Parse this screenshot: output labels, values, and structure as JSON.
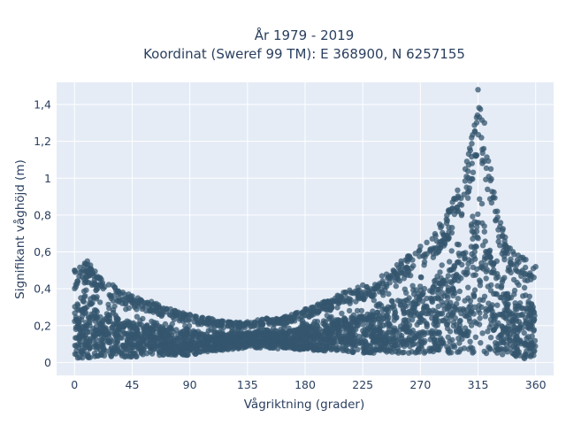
{
  "chart_data": {
    "type": "scatter",
    "title_line1": "År 1979 - 2019",
    "title_line2": "Koordinat (Sweref 99 TM): E 368900, N 6257155",
    "xlabel": "Vågriktning (grader)",
    "ylabel": "Signifikant våghöjd (m)",
    "xlim": [
      -14,
      374
    ],
    "ylim": [
      -0.07,
      1.52
    ],
    "x_ticks": [
      {
        "value": 0,
        "label": "0"
      },
      {
        "value": 45,
        "label": "45"
      },
      {
        "value": 90,
        "label": "90"
      },
      {
        "value": 135,
        "label": "135"
      },
      {
        "value": 180,
        "label": "180"
      },
      {
        "value": 225,
        "label": "225"
      },
      {
        "value": 270,
        "label": "270"
      },
      {
        "value": 315,
        "label": "315"
      },
      {
        "value": 360,
        "label": "360"
      }
    ],
    "y_ticks": [
      {
        "value": 0,
        "label": "0"
      },
      {
        "value": 0.2,
        "label": "0,2"
      },
      {
        "value": 0.4,
        "label": "0,4"
      },
      {
        "value": 0.6,
        "label": "0,6"
      },
      {
        "value": 0.8,
        "label": "0,8"
      },
      {
        "value": 1.0,
        "label": "1"
      },
      {
        "value": 1.2,
        "label": "1,2"
      },
      {
        "value": 1.4,
        "label": "1,4"
      }
    ],
    "grid": true,
    "colors": {
      "plot_bg": "#e5ecf6",
      "grid": "#ffffff",
      "marker": "#34566e"
    },
    "series": [
      {
        "envelope": [
          {
            "x": 0,
            "min": 0.02,
            "max": 0.5
          },
          {
            "x": 10,
            "min": 0.02,
            "max": 0.55
          },
          {
            "x": 20,
            "min": 0.03,
            "max": 0.46
          },
          {
            "x": 30,
            "min": 0.03,
            "max": 0.42
          },
          {
            "x": 45,
            "min": 0.03,
            "max": 0.36
          },
          {
            "x": 60,
            "min": 0.04,
            "max": 0.33
          },
          {
            "x": 75,
            "min": 0.04,
            "max": 0.29
          },
          {
            "x": 90,
            "min": 0.04,
            "max": 0.26
          },
          {
            "x": 105,
            "min": 0.06,
            "max": 0.24
          },
          {
            "x": 120,
            "min": 0.07,
            "max": 0.22
          },
          {
            "x": 135,
            "min": 0.08,
            "max": 0.22
          },
          {
            "x": 150,
            "min": 0.08,
            "max": 0.24
          },
          {
            "x": 165,
            "min": 0.07,
            "max": 0.25
          },
          {
            "x": 180,
            "min": 0.07,
            "max": 0.29
          },
          {
            "x": 195,
            "min": 0.06,
            "max": 0.33
          },
          {
            "x": 210,
            "min": 0.06,
            "max": 0.38
          },
          {
            "x": 225,
            "min": 0.05,
            "max": 0.42
          },
          {
            "x": 240,
            "min": 0.05,
            "max": 0.47
          },
          {
            "x": 255,
            "min": 0.05,
            "max": 0.55
          },
          {
            "x": 270,
            "min": 0.05,
            "max": 0.63
          },
          {
            "x": 285,
            "min": 0.05,
            "max": 0.75
          },
          {
            "x": 295,
            "min": 0.05,
            "max": 0.87
          },
          {
            "x": 305,
            "min": 0.05,
            "max": 1.05
          },
          {
            "x": 310,
            "min": 0.05,
            "max": 1.22
          },
          {
            "x": 315,
            "min": 0.05,
            "max": 1.48
          },
          {
            "x": 320,
            "min": 0.05,
            "max": 1.3
          },
          {
            "x": 325,
            "min": 0.05,
            "max": 1.05
          },
          {
            "x": 330,
            "min": 0.04,
            "max": 0.82
          },
          {
            "x": 340,
            "min": 0.03,
            "max": 0.62
          },
          {
            "x": 350,
            "min": 0.02,
            "max": 0.57
          },
          {
            "x": 360,
            "min": 0.02,
            "max": 0.52
          }
        ]
      }
    ]
  }
}
